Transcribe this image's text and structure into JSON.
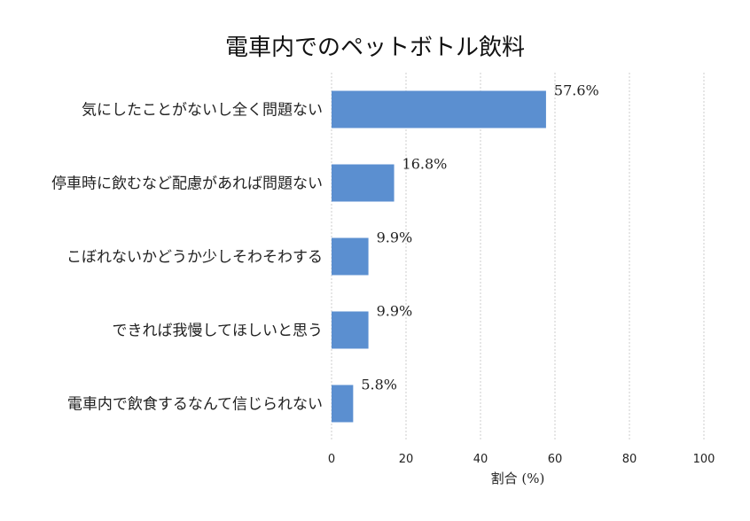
{
  "chart_data": {
    "type": "bar",
    "orientation": "horizontal",
    "title": "電車内でのペットボトル飲料",
    "xlabel": "割合 (%)",
    "ylabel": "",
    "xlim": [
      0,
      100
    ],
    "xticks": [
      0,
      20,
      40,
      60,
      80,
      100
    ],
    "grid": "vertical dashed",
    "bar_color": "#5b8fd0",
    "categories": [
      "気にしたことがないし全く問題ない",
      "停車時に飲むなど配慮があれば問題ない",
      "こぼれないかどうか少しそわそわする",
      "できれば我慢してほしいと思う",
      "電車内で飲食するなんて信じられない"
    ],
    "values": [
      57.6,
      16.8,
      9.9,
      9.9,
      5.8
    ],
    "value_labels": [
      "57.6%",
      "16.8%",
      "9.9%",
      "9.9%",
      "5.8%"
    ]
  }
}
